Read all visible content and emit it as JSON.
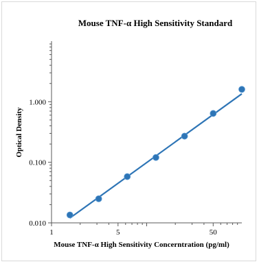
{
  "chart_data": {
    "type": "scatter",
    "title": "Mouse TNF-α High Sensitivity Standard",
    "xlabel": "Mouse TNF-α High Sensitivity Concerntration (pg/ml)",
    "ylabel": "Optical Density",
    "x_scale": "log",
    "y_scale": "log",
    "xlim": [
      1,
      100
    ],
    "ylim": [
      0.01,
      10
    ],
    "x_ticks": [
      1,
      5,
      50
    ],
    "x_tick_labels": [
      "1",
      "5",
      "50"
    ],
    "y_ticks": [
      0.01,
      0.1,
      1
    ],
    "y_tick_labels": [
      "0.010",
      "0.100",
      "1.000"
    ],
    "grid": false,
    "legend": "none",
    "series": [
      {
        "color": "#2e75b6",
        "points": [
          {
            "x": 1.56,
            "y": 0.0135
          },
          {
            "x": 3.13,
            "y": 0.025
          },
          {
            "x": 6.25,
            "y": 0.058
          },
          {
            "x": 12.5,
            "y": 0.12
          },
          {
            "x": 25,
            "y": 0.27
          },
          {
            "x": 50,
            "y": 0.64
          },
          {
            "x": 100,
            "y": 1.6
          }
        ]
      }
    ],
    "fit_line": {
      "color": "#2e75b6",
      "from": {
        "x": 1.56,
        "y": 0.012
      },
      "to": {
        "x": 100,
        "y": 1.35
      }
    }
  }
}
